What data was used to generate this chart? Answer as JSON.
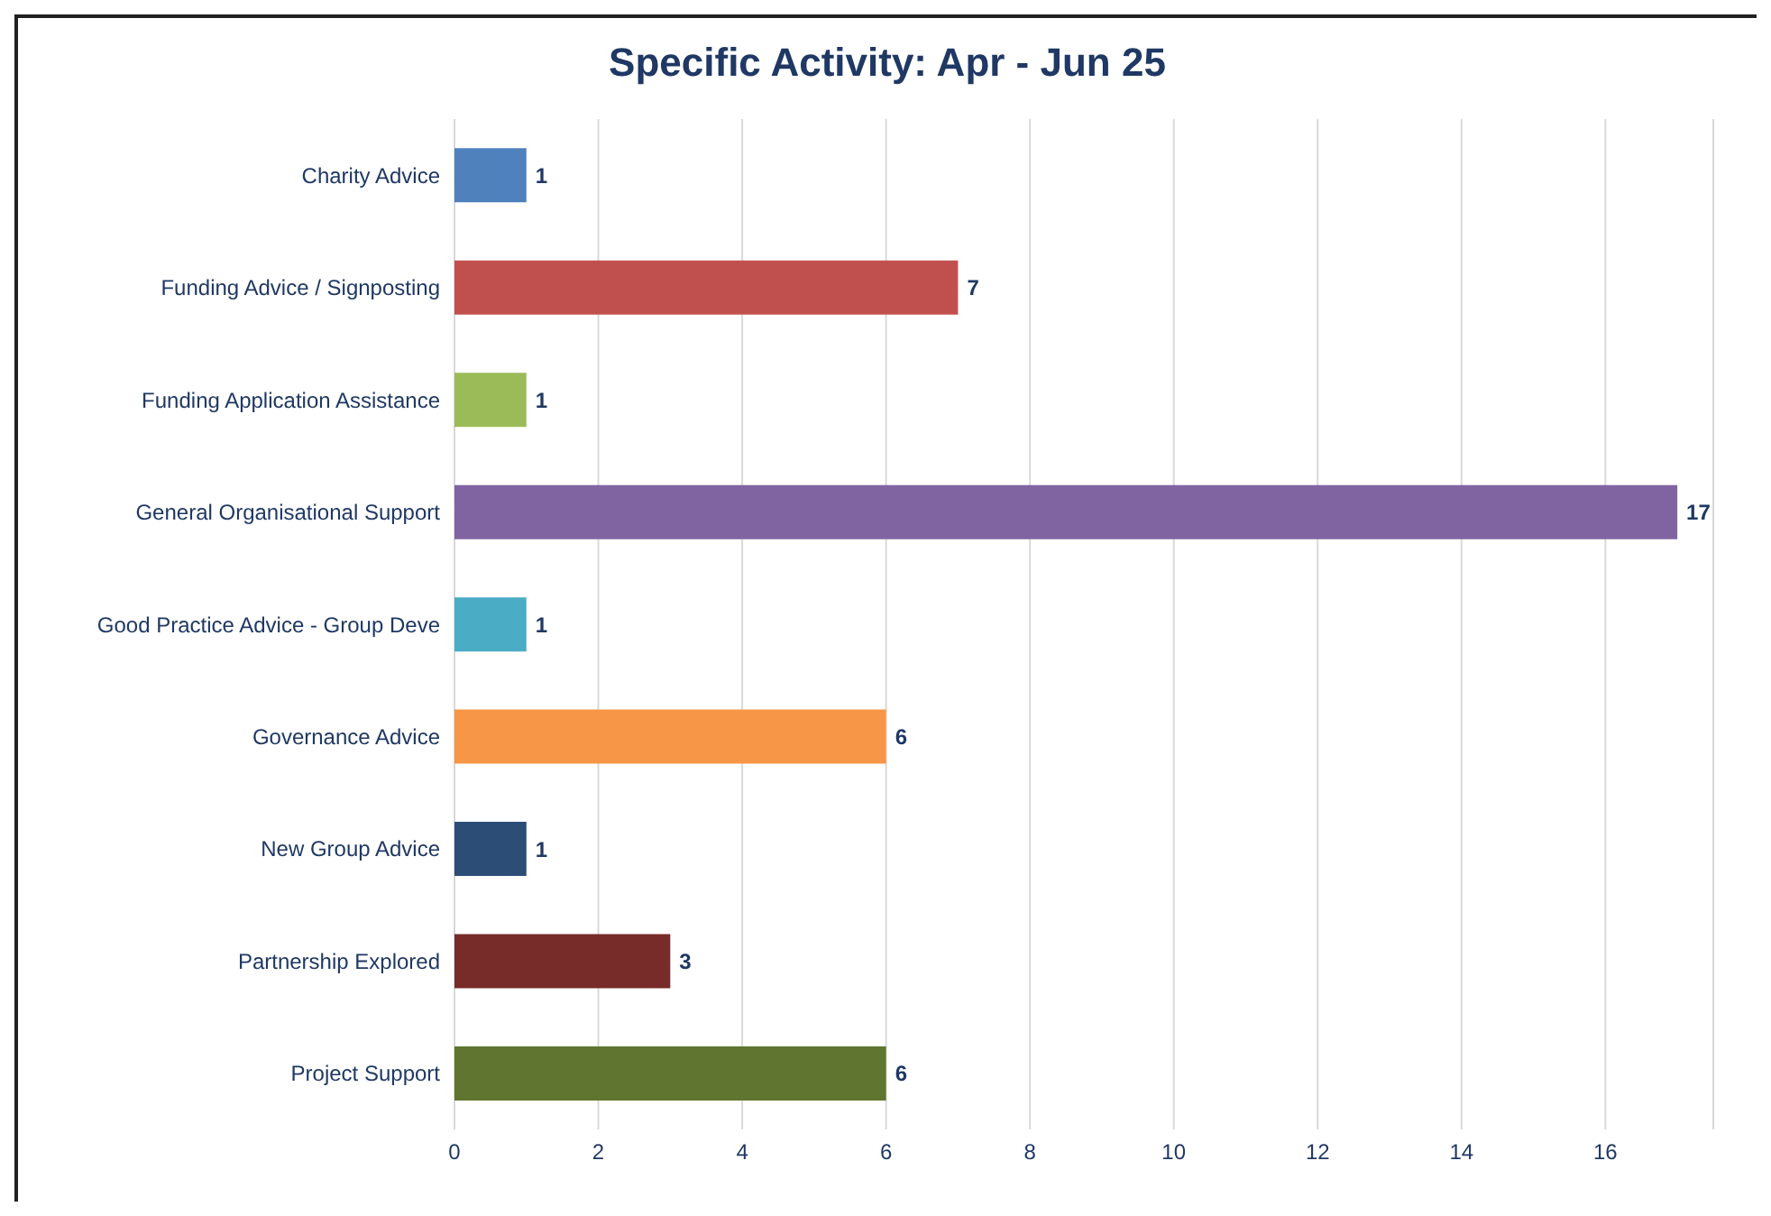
{
  "chart_data": {
    "type": "bar",
    "orientation": "horizontal",
    "title": "Specific Activity: Apr - Jun 25",
    "categories": [
      "Charity Advice",
      "Funding Advice / Signposting",
      "Funding Application Assistance",
      "General Organisational Support",
      "Good Practice Advice - Group Deve",
      "Governance Advice",
      "New Group Advice",
      "Partnership Explored",
      "Project Support"
    ],
    "values": [
      1,
      7,
      1,
      17,
      1,
      6,
      1,
      3,
      6
    ],
    "colors": [
      "#4f81bd",
      "#c0504d",
      "#9bbb59",
      "#8064a2",
      "#4bacc6",
      "#f79646",
      "#2c4d75",
      "#772c2a",
      "#5f7530"
    ],
    "xlim": [
      0,
      17.5
    ],
    "xticks": [
      0,
      2,
      4,
      6,
      8,
      10,
      12,
      14,
      16
    ],
    "grid": "x",
    "data_labels": true
  }
}
